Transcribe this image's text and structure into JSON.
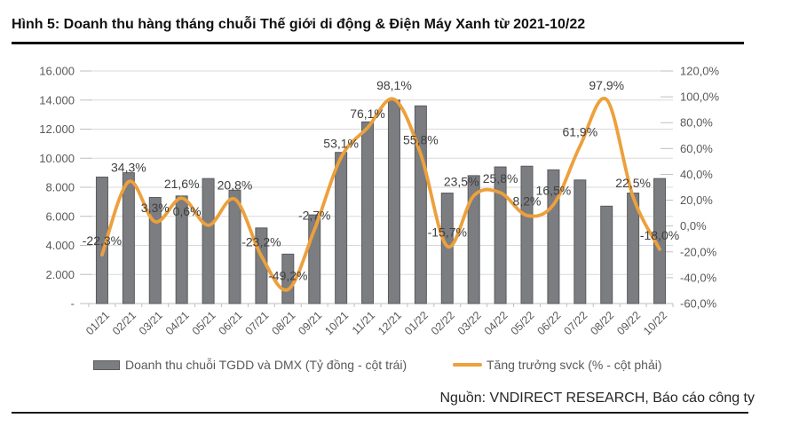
{
  "title": "Hình 5: Doanh thu hàng tháng chuỗi Thế giới di động & Điện Máy Xanh từ 2021-10/22",
  "source": "Nguồn: VNDIRECT RESEARCH, Báo cáo công ty",
  "legend": {
    "bar_label": "Doanh thu chuỗi TGDD và DMX (Tỷ đồng - cột trái)",
    "line_label": "Tăng trưởng svck (% - cột phải)"
  },
  "colors": {
    "bar_fill": "#7b7d80",
    "bar_stroke": "#595b5e",
    "line": "#EDA03C",
    "grid": "#D9D9D9",
    "tick": "#BFBFBF",
    "axis_text": "#595959",
    "data_label_text": "#404040"
  },
  "chart_data": {
    "type": "bar+line combo",
    "categories": [
      "01/21",
      "02/21",
      "03/21",
      "04/21",
      "05/21",
      "06/21",
      "07/21",
      "08/21",
      "09/21",
      "10/21",
      "11/21",
      "12/21",
      "01/22",
      "02/22",
      "03/22",
      "04/22",
      "05/22",
      "06/22",
      "07/22",
      "08/22",
      "09/22",
      "10/22"
    ],
    "series": [
      {
        "name": "Doanh thu chuỗi TGDD và DMX (Tỷ đồng - cột trái)",
        "type": "bar",
        "axis": "left",
        "values": [
          8700,
          9000,
          7300,
          7400,
          8600,
          7800,
          5200,
          3400,
          6100,
          10400,
          12500,
          14000,
          13600,
          7600,
          8800,
          9400,
          9450,
          9200,
          8500,
          6700,
          7600,
          8600
        ]
      },
      {
        "name": "Tăng trưởng svck (% - cột phải)",
        "type": "line",
        "axis": "right",
        "values": [
          -22.3,
          34.3,
          3.3,
          21.6,
          0.6,
          20.8,
          -23.2,
          -49.2,
          -2.7,
          53.1,
          76.1,
          98.1,
          55.8,
          -15.7,
          23.5,
          25.8,
          8.2,
          16.5,
          61.9,
          97.9,
          22.5,
          -18.0
        ],
        "labels": [
          "-22,3%",
          "34,3%",
          "3,3%",
          "21,6%",
          "0,6%",
          "20,8%",
          "-23,2%",
          "-49,2%",
          "-2,7%",
          "53,1%",
          "76,1%",
          "98,1%",
          "55,8%",
          "-15,7%",
          "23,5%",
          "25,8%",
          "8,2%",
          "16,5%",
          "61,9%",
          "97,9%",
          "22,5%",
          "-18,0%"
        ],
        "label_dx": [
          0,
          0,
          0,
          0,
          -24,
          0,
          0,
          0,
          0,
          0,
          0,
          0,
          0,
          0,
          -14,
          0,
          0,
          0,
          0,
          0,
          0,
          0
        ]
      }
    ],
    "left_axis": {
      "min": 0,
      "max": 16000,
      "step": 2000,
      "tick_labels": [
        "16.000",
        "14.000",
        "12.000",
        "10.000",
        "8.000",
        "6.000",
        "4.000",
        "2.000",
        "-"
      ]
    },
    "right_axis": {
      "min": -60,
      "max": 120,
      "step": 20,
      "tick_labels": [
        "120,0%",
        "100,0%",
        "80,0%",
        "60,0%",
        "40,0%",
        "20,0%",
        "0,0%",
        "-20,0%",
        "-40,0%",
        "-60,0%"
      ]
    },
    "grid": "horizontal, left-axis intervals",
    "legend_position": "bottom"
  }
}
